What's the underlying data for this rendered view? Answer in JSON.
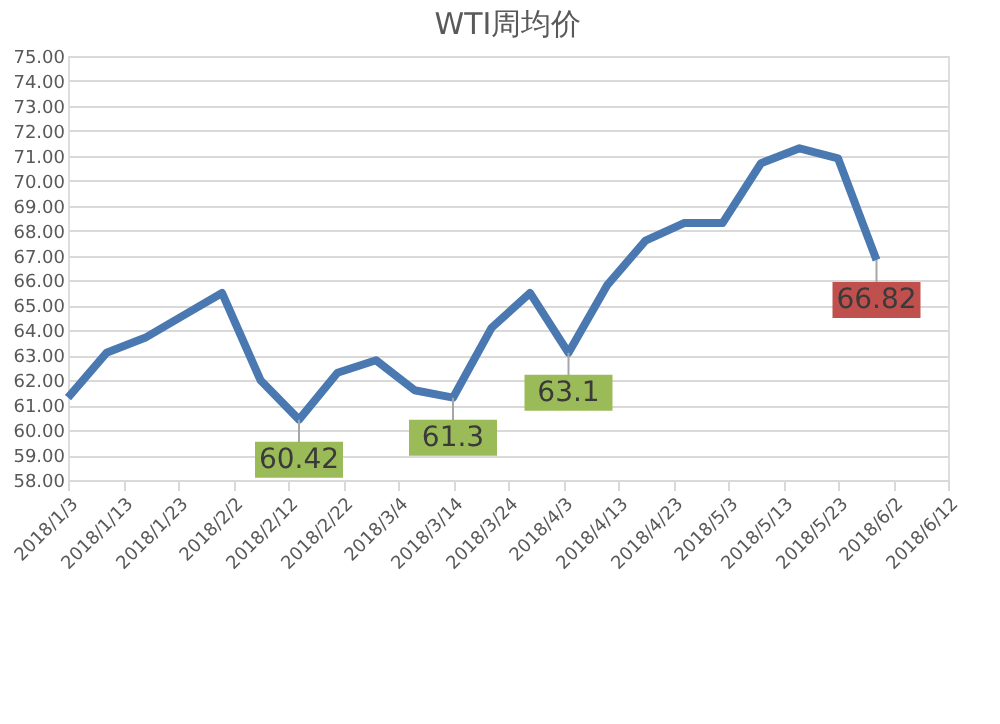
{
  "chart_data": {
    "type": "line",
    "title": "WTI周均价",
    "x": [
      "2018-01-03",
      "2018-01-10",
      "2018-01-17",
      "2018-01-24",
      "2018-01-31",
      "2018-02-07",
      "2018-02-14",
      "2018-02-21",
      "2018-02-28",
      "2018-03-07",
      "2018-03-14",
      "2018-03-21",
      "2018-03-28",
      "2018-04-04",
      "2018-04-11",
      "2018-04-18",
      "2018-04-25",
      "2018-05-02",
      "2018-05-09",
      "2018-05-16",
      "2018-05-23",
      "2018-05-30"
    ],
    "series": [
      {
        "color": "#4a78b0",
        "values": [
          61.3,
          63.1,
          63.7,
          64.6,
          65.5,
          62.0,
          60.42,
          62.3,
          62.8,
          61.6,
          61.3,
          64.1,
          65.5,
          63.1,
          65.8,
          67.6,
          68.3,
          68.3,
          70.7,
          71.3,
          70.9,
          66.82
        ]
      }
    ],
    "xlim": [
      "2018-01-03",
      "2018-06-12"
    ],
    "xticks": [
      {
        "value": "2018-01-03",
        "label": "2018/1/3"
      },
      {
        "value": "2018-01-13",
        "label": "2018/1/13"
      },
      {
        "value": "2018-01-23",
        "label": "2018/1/23"
      },
      {
        "value": "2018-02-02",
        "label": "2018/2/2"
      },
      {
        "value": "2018-02-12",
        "label": "2018/2/12"
      },
      {
        "value": "2018-02-22",
        "label": "2018/2/22"
      },
      {
        "value": "2018-03-04",
        "label": "2018/3/4"
      },
      {
        "value": "2018-03-14",
        "label": "2018/3/14"
      },
      {
        "value": "2018-03-24",
        "label": "2018/3/24"
      },
      {
        "value": "2018-04-03",
        "label": "2018/4/3"
      },
      {
        "value": "2018-04-13",
        "label": "2018/4/13"
      },
      {
        "value": "2018-04-23",
        "label": "2018/4/23"
      },
      {
        "value": "2018-05-03",
        "label": "2018/5/3"
      },
      {
        "value": "2018-05-13",
        "label": "2018/5/13"
      },
      {
        "value": "2018-05-23",
        "label": "2018/5/23"
      },
      {
        "value": "2018-06-02",
        "label": "2018/6/2"
      },
      {
        "value": "2018-06-12",
        "label": "2018/6/12"
      }
    ],
    "ylim": [
      58,
      75
    ],
    "yticks": [
      {
        "value": 58,
        "label": "58.00"
      },
      {
        "value": 59,
        "label": "59.00"
      },
      {
        "value": 60,
        "label": "60.00"
      },
      {
        "value": 61,
        "label": "61.00"
      },
      {
        "value": 62,
        "label": "62.00"
      },
      {
        "value": 63,
        "label": "63.00"
      },
      {
        "value": 64,
        "label": "64.00"
      },
      {
        "value": 65,
        "label": "65.00"
      },
      {
        "value": 66,
        "label": "66.00"
      },
      {
        "value": 67,
        "label": "67.00"
      },
      {
        "value": 68,
        "label": "68.00"
      },
      {
        "value": 69,
        "label": "69.00"
      },
      {
        "value": 70,
        "label": "70.00"
      },
      {
        "value": 71,
        "label": "71.00"
      },
      {
        "value": 72,
        "label": "72.00"
      },
      {
        "value": 73,
        "label": "73.00"
      },
      {
        "value": 74,
        "label": "74.00"
      },
      {
        "value": 75,
        "label": "75.00"
      }
    ],
    "annotations": [
      {
        "text": "60.42",
        "x": "2018-02-14",
        "y": 60.42
      },
      {
        "text": "61.3",
        "x": "2018-03-14",
        "y": 61.3
      },
      {
        "text": "63.1",
        "x": "2018-04-04",
        "y": 63.1
      },
      {
        "text": "66.82",
        "x": "2018-05-30",
        "y": 66.82
      }
    ],
    "grid": "y",
    "marker": "none",
    "line_style": "solid"
  }
}
